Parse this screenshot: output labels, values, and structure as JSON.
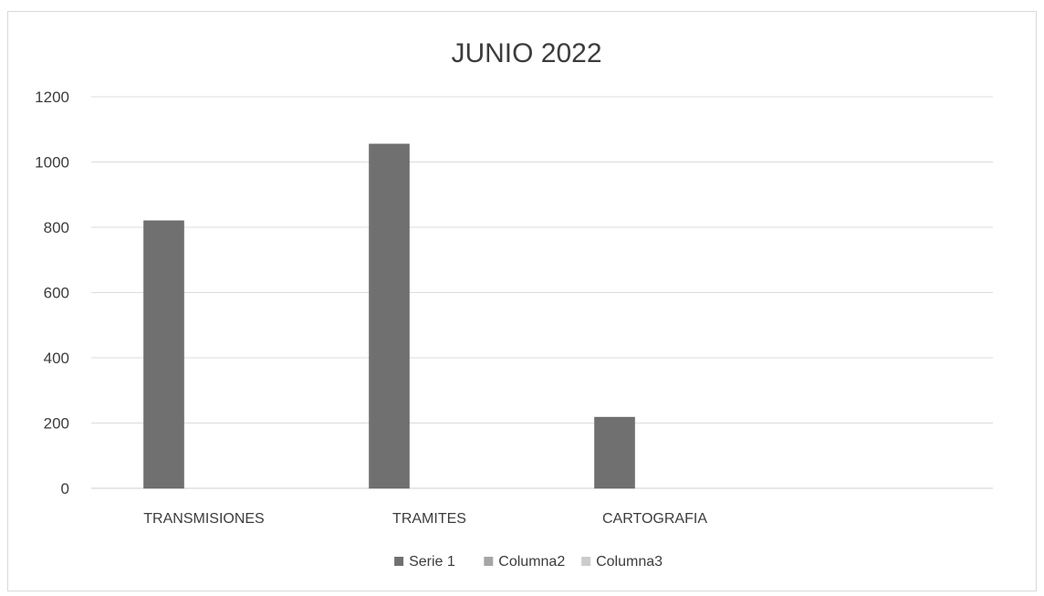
{
  "chart_data": {
    "type": "bar",
    "title": "JUNIO 2022",
    "categories": [
      "TRANSMISIONES",
      "TRAMITES",
      "CARTOGRAFIA",
      ""
    ],
    "series": [
      {
        "name": "Serie 1",
        "values": [
          820,
          1055,
          218,
          null
        ],
        "color": "#707070"
      },
      {
        "name": "Columna2",
        "values": [
          null,
          null,
          null,
          null
        ],
        "color": "#a6a6a6"
      },
      {
        "name": "Columna3",
        "values": [
          null,
          null,
          null,
          null
        ],
        "color": "#cccccc"
      }
    ],
    "ylim": [
      0,
      1200
    ],
    "yticks": [
      0,
      200,
      400,
      600,
      800,
      1000,
      1200
    ],
    "grid": true,
    "legend": "bottom"
  }
}
